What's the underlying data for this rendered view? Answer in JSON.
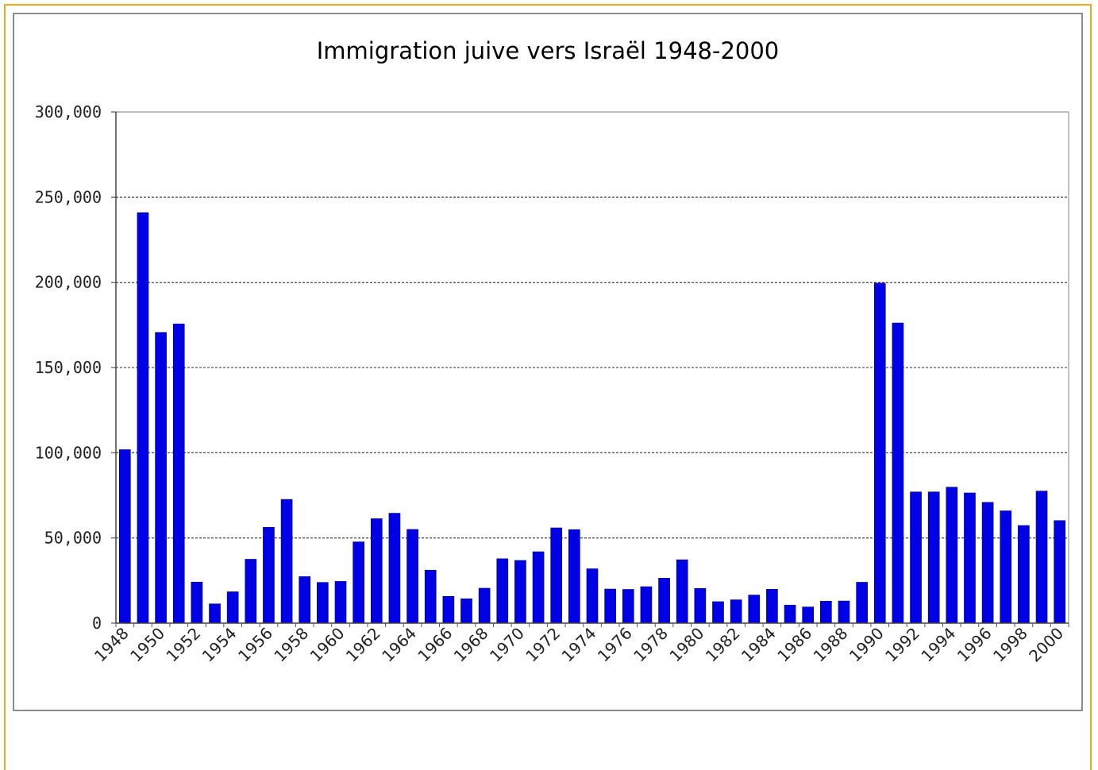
{
  "chart_data": {
    "type": "bar",
    "title": "Immigration juive vers Israël 1948-2000",
    "xlabel": "",
    "ylabel": "",
    "ylim": [
      0,
      300000
    ],
    "grid": "horizontal-dashed",
    "bar_color": "#0000e6",
    "x_tick_labels": [
      "1948",
      "1950",
      "1952",
      "1954",
      "1956",
      "1958",
      "1960",
      "1962",
      "1964",
      "1966",
      "1968",
      "1970",
      "1972",
      "1974",
      "1976",
      "1978",
      "1980",
      "1982",
      "1984",
      "1986",
      "1988",
      "1990",
      "1992",
      "1994",
      "1996",
      "1998",
      "2000"
    ],
    "y_tick_labels": [
      "0",
      "50,000",
      "100,000",
      "150,000",
      "200,000",
      "250,000",
      "300,000"
    ],
    "categories": [
      1948,
      1949,
      1950,
      1951,
      1952,
      1953,
      1954,
      1955,
      1956,
      1957,
      1958,
      1959,
      1960,
      1961,
      1962,
      1963,
      1964,
      1965,
      1966,
      1967,
      1968,
      1969,
      1970,
      1971,
      1972,
      1973,
      1974,
      1975,
      1976,
      1977,
      1978,
      1979,
      1980,
      1981,
      1982,
      1983,
      1984,
      1985,
      1986,
      1987,
      1988,
      1989,
      1990,
      1991,
      1992,
      1993,
      1994,
      1995,
      1996,
      1997,
      1998,
      1999,
      2000
    ],
    "values": [
      101800,
      240900,
      170600,
      175600,
      24100,
      11300,
      18400,
      37500,
      56200,
      72600,
      27300,
      23900,
      24500,
      47700,
      61300,
      64500,
      55000,
      31100,
      15700,
      14300,
      20500,
      37800,
      36800,
      41900,
      55900,
      54900,
      31900,
      20000,
      19800,
      21400,
      26400,
      37200,
      20400,
      12600,
      13700,
      16500,
      19900,
      10600,
      9500,
      12900,
      13000,
      24000,
      199500,
      176100,
      77000,
      77000,
      79800,
      76400,
      70900,
      65900,
      57300,
      77500,
      60200
    ]
  }
}
